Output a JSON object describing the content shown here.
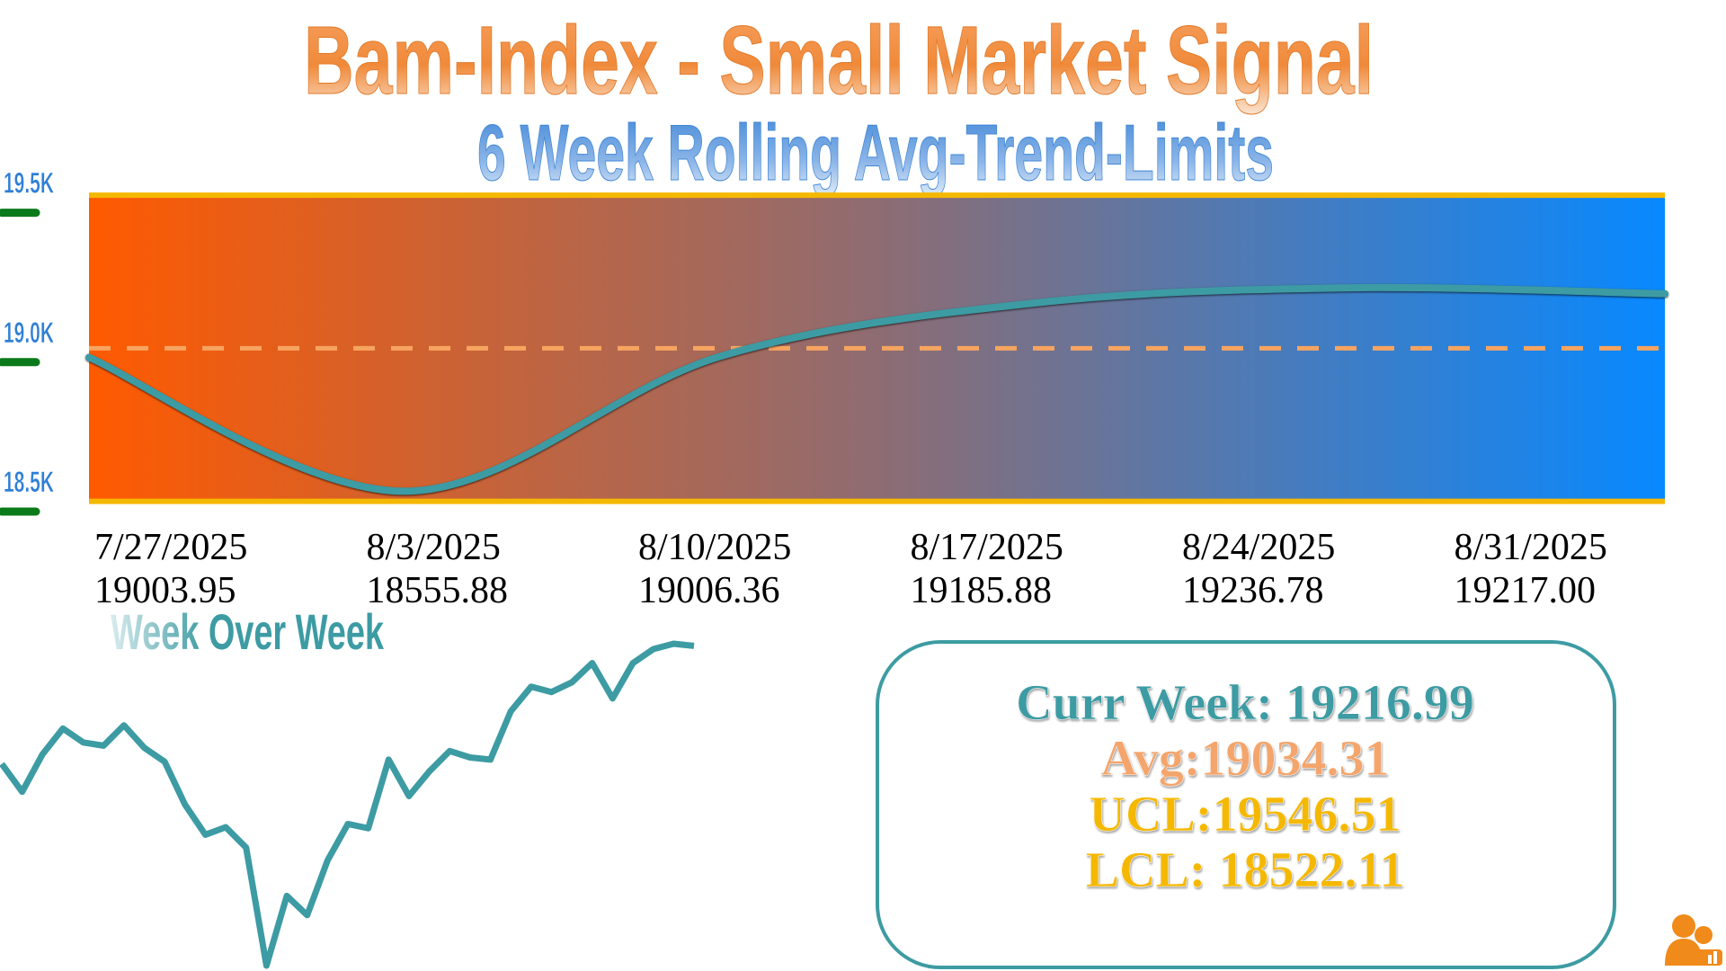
{
  "chart_data": {
    "type": "line",
    "title": "Bam-Index - Small Market  Signal",
    "subtitle": "6 Week Rolling Avg-Trend-Limits",
    "categories": [
      "7/27/2025",
      "8/3/2025",
      "8/10/2025",
      "8/17/2025",
      "8/24/2025",
      "8/31/2025"
    ],
    "values": [
      19003.95,
      18555.88,
      19006.36,
      19185.88,
      19236.78,
      19217.0
    ],
    "value_labels": [
      "19003.95",
      "18555.88",
      "19006.36",
      "19185.88",
      "19236.78",
      "19217.00"
    ],
    "color": "#3d9ba3",
    "band_colors": [
      "#ff5a00",
      "#8e6c72",
      "#0789ff"
    ],
    "limit_color": "#f5b800",
    "avg_color": "#f7a460",
    "tick_color": "#0a7a1a",
    "ylim": [
      18500,
      19550
    ],
    "yticks": [
      {
        "value": 18500,
        "label": "18.5K"
      },
      {
        "value": 19000,
        "label": "19.0K"
      },
      {
        "value": 19500,
        "label": "19.5K"
      }
    ],
    "avg": 19034.31,
    "ucl": 19546.51,
    "lcl": 18522.11,
    "curr_week": 19216.99,
    "stat_labels": {
      "curr_week": "Curr Week:",
      "avg": "Avg:",
      "ucl": "UCL:",
      "lcl": "LCL:"
    }
  },
  "week_over_week": {
    "type": "line",
    "title": "Week Over Week",
    "color": "#3d9ba3",
    "values": [
      208,
      182,
      217,
      241,
      228,
      225,
      244,
      223,
      210,
      170,
      142,
      149,
      130,
      20,
      85,
      67,
      118,
      152,
      148,
      212,
      178,
      201,
      220,
      214,
      212,
      257,
      280,
      275,
      284,
      302,
      269,
      302,
      315,
      320,
      318
    ]
  }
}
